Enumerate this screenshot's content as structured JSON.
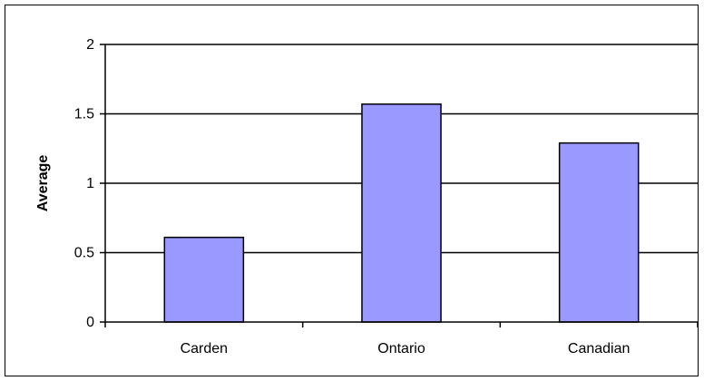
{
  "chart_data": {
    "type": "bar",
    "title": "",
    "xlabel": "",
    "ylabel": "Average",
    "categories": [
      "Carden",
      "Ontario",
      "Canadian"
    ],
    "values": [
      0.61,
      1.57,
      1.29
    ],
    "ylim": [
      0,
      2
    ],
    "yticks": [
      0,
      0.5,
      1,
      1.5,
      2
    ],
    "ytick_labels": [
      "0",
      "0.5",
      "1",
      "1.5",
      "2"
    ],
    "grid": true,
    "legend": "none",
    "colors": {
      "bar_fill": "#9999ff",
      "bar_stroke": "#000000",
      "gridline": "#000000",
      "plot_background": "#ffffff"
    }
  }
}
